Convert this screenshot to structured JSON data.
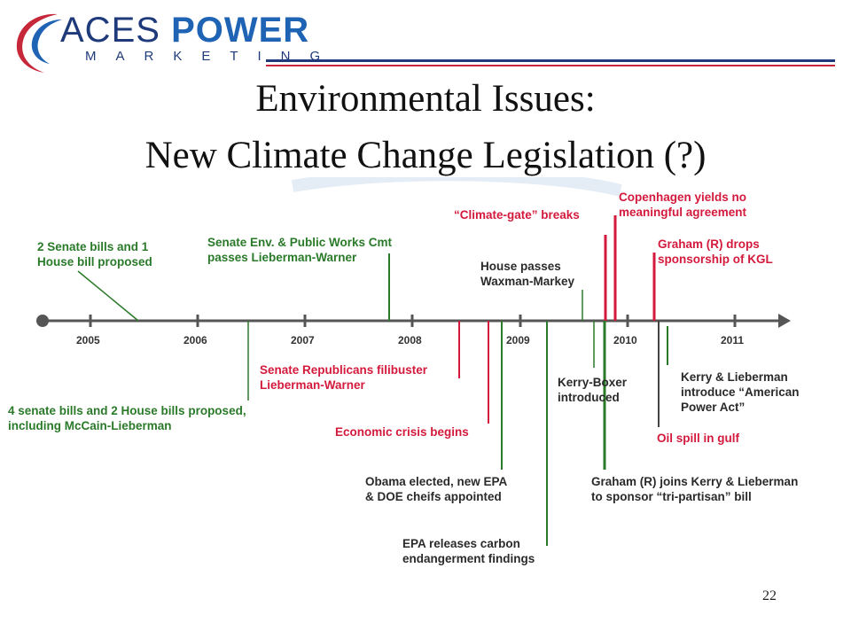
{
  "logo": {
    "aces": "ACES",
    "power": "POWER",
    "marketing": "MARKETING"
  },
  "title": {
    "line1": "Environmental Issues:",
    "line2": "New Climate Change Legislation (?)"
  },
  "years": [
    "2005",
    "2006",
    "2007",
    "2008",
    "2009",
    "2010",
    "2011"
  ],
  "events": {
    "e1": [
      "2 Senate bills and 1",
      "House bill proposed"
    ],
    "e2": [
      "Senate Env. & Public Works Cmt",
      "passes Lieberman-Warner"
    ],
    "e3": [
      "“Climate-gate” breaks"
    ],
    "e4": [
      "Copenhagen yields no",
      "meaningful agreement"
    ],
    "e5": [
      "House passes",
      "Waxman-Markey"
    ],
    "e6": [
      "Graham (R) drops",
      "sponsorship of KGL"
    ],
    "e7": [
      "4 senate bills and 2 House bills proposed,",
      "including McCain-Lieberman"
    ],
    "e8": [
      "Senate Republicans filibuster",
      "Lieberman-Warner"
    ],
    "e9": [
      "Economic crisis begins"
    ],
    "e10": [
      "Kerry-Boxer",
      "introduced"
    ],
    "e11": [
      "Kerry & Lieberman",
      "introduce “American",
      " Power Act”"
    ],
    "e12": [
      "Oil spill in gulf"
    ],
    "e13": [
      "Obama elected, new EPA",
      "& DOE cheifs appointed"
    ],
    "e14": [
      "Graham (R) joins Kerry & Lieberman",
      "to sponsor “tri-partisan” bill"
    ],
    "e15": [
      "EPA releases carbon",
      "endangerment findings"
    ]
  },
  "colors": {
    "green": "#2a7a2a",
    "red": "#d41a3c",
    "dark": "#333333",
    "navy": "#1f3a7a"
  },
  "page_number": "22"
}
